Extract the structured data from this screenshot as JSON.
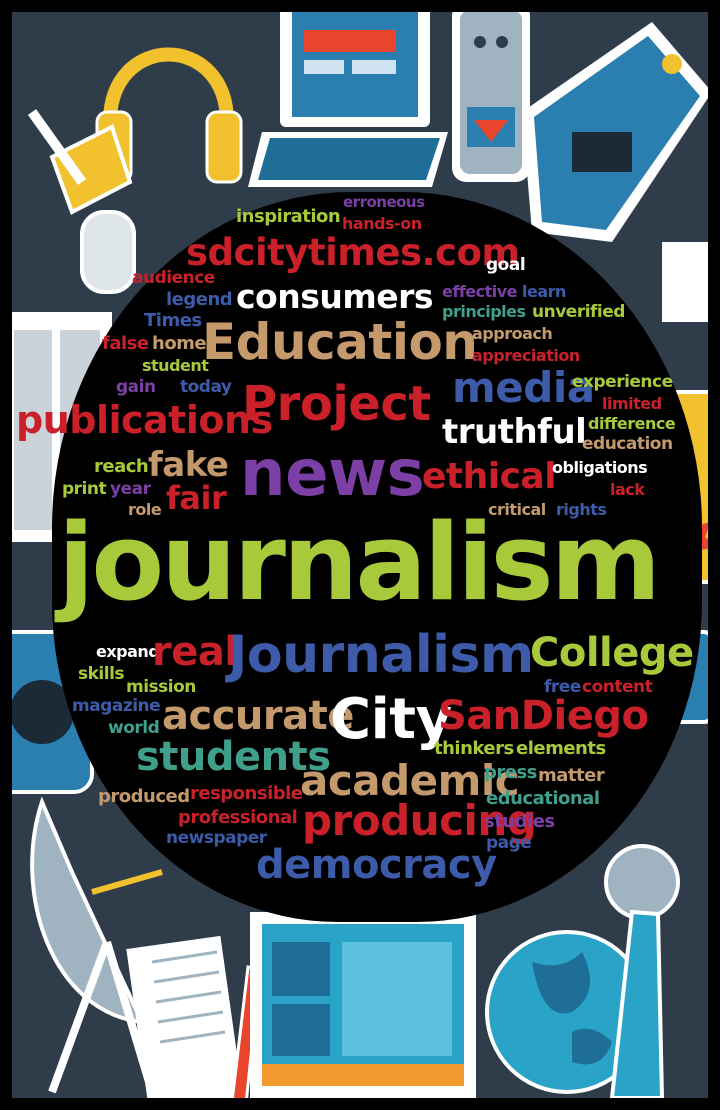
{
  "colors": {
    "background": "#2f3d4b",
    "cloud": "#000000",
    "lime": "#a8c93a",
    "purple": "#7b3fa5",
    "tan": "#c49a6c",
    "red": "#c9202a",
    "blue": "#3d5ba9",
    "white": "#ffffff",
    "teal": "#3f9f8b"
  },
  "icons": [
    "headphones-icon",
    "laptop-icon",
    "voice-recorder-icon",
    "video-camera-icon",
    "desk-microphone-icon",
    "newspaper-icon",
    "satellite-dish-icon",
    "notepad-icon",
    "pencil-icon",
    "tablet-icon",
    "globe-icon",
    "handheld-microphone-icon",
    "news-card-icon",
    "speaker-icon"
  ],
  "words": [
    "erroneous",
    "inspiration",
    "hands-on",
    "sdcitytimes.com",
    "goal",
    "audience",
    "consumers",
    "effective",
    "learn",
    "legend",
    "principles",
    "unverified",
    "Times",
    "Education",
    "approach",
    "false",
    "home",
    "appreciation",
    "student",
    "gain",
    "today",
    "media",
    "experience",
    "publications",
    "Project",
    "limited",
    "difference",
    "truthful",
    "education",
    "reach",
    "fake",
    "news",
    "ethical",
    "obligations",
    "print",
    "year",
    "fair",
    "lack",
    "role",
    "critical",
    "rights",
    "journalism",
    "expand",
    "real",
    "Journalism",
    "College",
    "skills",
    "mission",
    "free",
    "content",
    "magazine",
    "accurate",
    "City",
    "SanDiego",
    "world",
    "students",
    "thinkers",
    "elements",
    "academic",
    "press",
    "matter",
    "produced",
    "responsible",
    "educational",
    "professional",
    "producing",
    "studies",
    "newspaper",
    "page",
    "democracy"
  ]
}
